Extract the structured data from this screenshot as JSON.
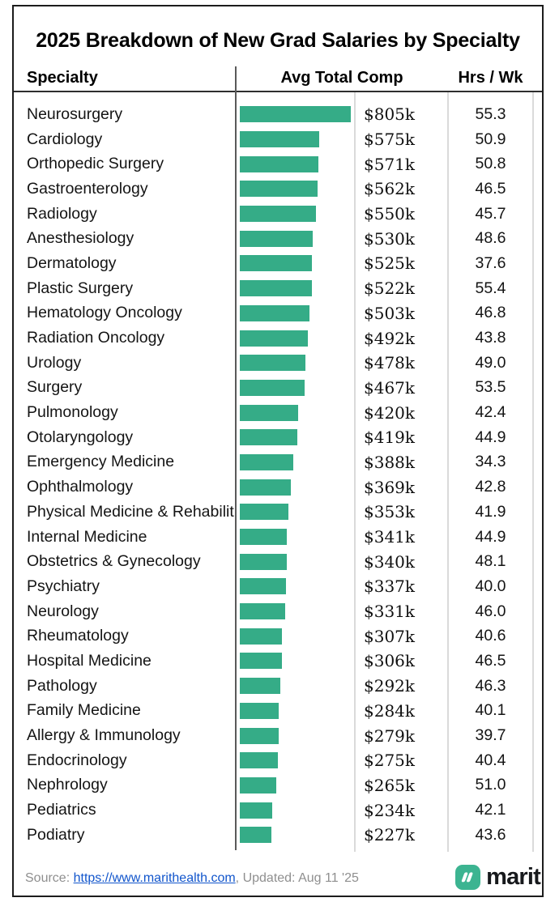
{
  "title": "2025 Breakdown of New Grad Salaries by Specialty",
  "columns": {
    "specialty": "Specialty",
    "comp": "Avg Total Comp",
    "hours": "Hrs / Wk"
  },
  "chart_data": {
    "type": "bar",
    "orientation": "horizontal",
    "title": "2025 Breakdown of New Grad Salaries by Specialty",
    "bar_color": "#35ac87",
    "value_prefix": "$",
    "value_suffix": "k",
    "xlim": [
      0,
      805
    ],
    "categories": [
      "Neurosurgery",
      "Cardiology",
      "Orthopedic Surgery",
      "Gastroenterology",
      "Radiology",
      "Anesthesiology",
      "Dermatology",
      "Plastic Surgery",
      "Hematology Oncology",
      "Radiation Oncology",
      "Urology",
      "Surgery",
      "Pulmonology",
      "Otolaryngology",
      "Emergency Medicine",
      "Ophthalmology",
      "Physical Medicine & Rehabilit",
      "Internal Medicine",
      "Obstetrics & Gynecology",
      "Psychiatry",
      "Neurology",
      "Rheumatology",
      "Hospital Medicine",
      "Pathology",
      "Family Medicine",
      "Allergy & Immunology",
      "Endocrinology",
      "Nephrology",
      "Pediatrics",
      "Podiatry"
    ],
    "series": [
      {
        "name": "Avg Total Comp ($k)",
        "values": [
          805,
          575,
          571,
          562,
          550,
          530,
          525,
          522,
          503,
          492,
          478,
          467,
          420,
          419,
          388,
          369,
          353,
          341,
          340,
          337,
          331,
          307,
          306,
          292,
          284,
          279,
          275,
          265,
          234,
          227
        ]
      },
      {
        "name": "Hrs / Wk",
        "values": [
          55.3,
          50.9,
          50.8,
          46.5,
          45.7,
          48.6,
          37.6,
          55.4,
          46.8,
          43.8,
          49.0,
          53.5,
          42.4,
          44.9,
          34.3,
          42.8,
          41.9,
          44.9,
          48.1,
          40.0,
          46.0,
          40.6,
          46.5,
          46.3,
          40.1,
          39.7,
          40.4,
          51.0,
          42.1,
          43.6
        ]
      }
    ]
  },
  "footer": {
    "source_label": "Source: ",
    "source_url": "https://www.marithealth.com",
    "updated": ", Updated: Aug 11 '25",
    "logo_color": "#3cb491",
    "brand": "marit"
  }
}
